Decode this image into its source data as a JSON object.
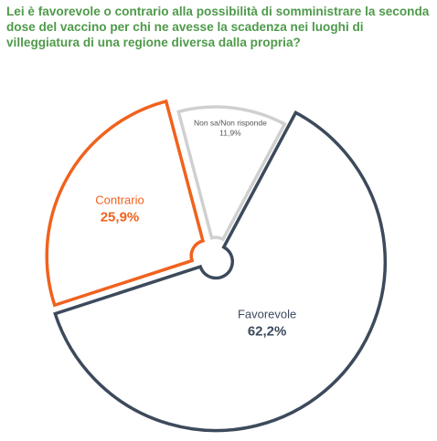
{
  "title": "Lei è favorevole o contrario alla possibilità di somministrare la seconda dose del vaccino per chi ne avesse la scadenza nei luoghi di villeggiatura di una regione diversa dalla propria?",
  "colors": {
    "title": "#4e9a4a",
    "favorevole": "#3d4a5c",
    "contrario": "#f0621e",
    "non_sa": "#d0d0d0"
  },
  "chart_data": {
    "type": "pie",
    "style": "exploded outline",
    "title": "Lei è favorevole o contrario alla possibilità di somministrare la seconda dose del vaccino per chi ne avesse la scadenza nei luoghi di villeggiatura di una regione diversa dalla propria?",
    "slices": [
      {
        "label": "Favorevole",
        "value": 62.2,
        "value_label": "62,2%",
        "color": "#3d4a5c"
      },
      {
        "label": "Contrario",
        "value": 25.9,
        "value_label": "25,9%",
        "color": "#f0621e"
      },
      {
        "label": "Non sa/Non risponde",
        "value": 11.9,
        "value_label": "11,9%",
        "color": "#d0d0d0"
      }
    ],
    "legend": "none"
  }
}
